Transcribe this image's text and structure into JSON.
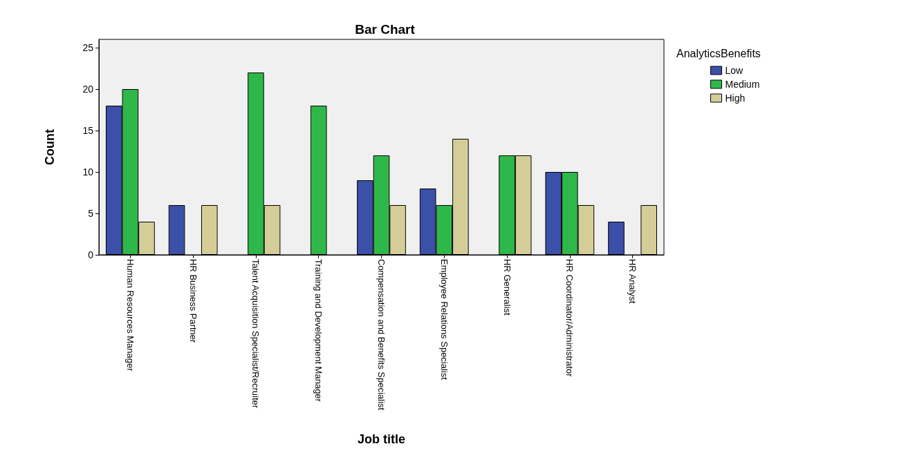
{
  "chart_data": {
    "type": "bar",
    "title": "Bar Chart",
    "xlabel": "Job title",
    "ylabel": "Count",
    "legend_title": "AnalyticsBenefits",
    "categories": [
      "Human Resources Manager",
      "HR Business Partner",
      "Talent Acquisition Specialist/Recruiter",
      "Training and Development Manager",
      "Compensation and Benefits Specialist",
      "Employee Relations Specialist",
      "HR Generalist",
      "HR Coordinator/Administrator",
      "HR Analyst"
    ],
    "series": [
      {
        "name": "Low",
        "color": "#3b50a8",
        "values": [
          18,
          6,
          null,
          null,
          9,
          8,
          null,
          10,
          4
        ]
      },
      {
        "name": "Medium",
        "color": "#2fb84a",
        "values": [
          20,
          null,
          22,
          18,
          12,
          6,
          12,
          10,
          null
        ]
      },
      {
        "name": "High",
        "color": "#d5cd98",
        "values": [
          4,
          6,
          6,
          null,
          6,
          14,
          12,
          6,
          6
        ]
      }
    ],
    "ylim": [
      0,
      26
    ],
    "yticks": [
      0,
      5,
      10,
      15,
      20,
      25
    ],
    "grid": false,
    "legend": "top right"
  }
}
